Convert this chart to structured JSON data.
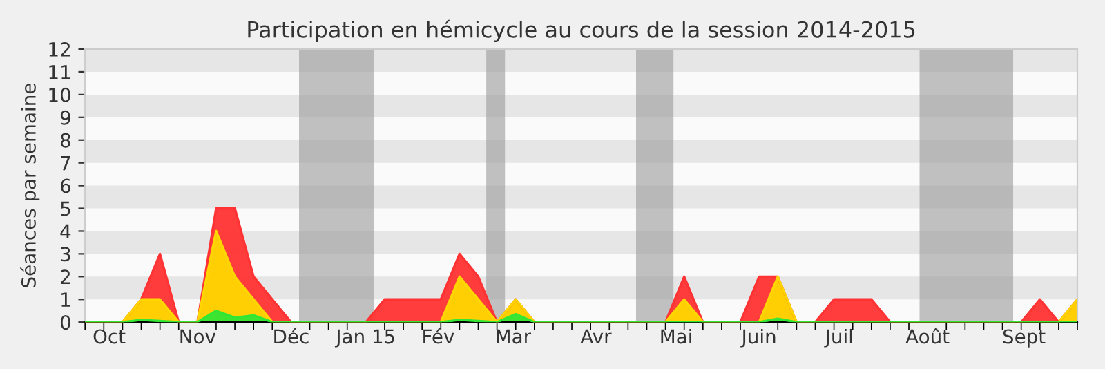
{
  "chart_data": {
    "type": "area",
    "title": "Participation en hémicycle au cours de la session 2014-2015",
    "ylabel": "Séances par semaine",
    "x": [
      "2014-09-22",
      "2014-09-29",
      "2014-10-06",
      "2014-10-13",
      "2014-10-20",
      "2014-10-27",
      "2014-11-03",
      "2014-11-10",
      "2014-11-17",
      "2014-11-24",
      "2014-12-01",
      "2014-12-08",
      "2014-12-15",
      "2014-12-22",
      "2014-12-29",
      "2015-01-05",
      "2015-01-12",
      "2015-01-19",
      "2015-01-26",
      "2015-02-02",
      "2015-02-09",
      "2015-02-16",
      "2015-02-23",
      "2015-03-02",
      "2015-03-09",
      "2015-03-16",
      "2015-03-23",
      "2015-03-30",
      "2015-04-06",
      "2015-04-13",
      "2015-04-20",
      "2015-04-27",
      "2015-05-04",
      "2015-05-11",
      "2015-05-18",
      "2015-05-25",
      "2015-06-01",
      "2015-06-08",
      "2015-06-15",
      "2015-06-22",
      "2015-06-29",
      "2015-07-06",
      "2015-07-13",
      "2015-07-20",
      "2015-07-27",
      "2015-08-03",
      "2015-08-10",
      "2015-08-17",
      "2015-08-24",
      "2015-08-31",
      "2015-09-07",
      "2015-09-14",
      "2015-09-21",
      "2015-09-28"
    ],
    "series": [
      {
        "color": "#ff3333",
        "values": [
          0,
          0,
          0,
          1,
          3,
          0,
          0,
          5,
          5,
          2,
          1,
          0,
          0,
          0,
          0,
          0,
          1,
          1,
          1,
          1,
          3,
          2,
          0,
          1,
          0,
          0,
          0,
          0,
          0,
          0,
          0,
          0,
          2,
          0,
          0,
          0,
          2,
          2,
          0,
          0,
          1,
          1,
          1,
          0,
          0,
          0,
          0,
          0,
          0,
          0,
          0,
          1,
          0,
          1
        ]
      },
      {
        "color": "#ffd700",
        "values": [
          0,
          0,
          0,
          1,
          1,
          0,
          0,
          4,
          2,
          1,
          0,
          0,
          0,
          0,
          0,
          0,
          0,
          0,
          0,
          0,
          2,
          1,
          0,
          1,
          0,
          0,
          0,
          0,
          0,
          0,
          0,
          0,
          1,
          0,
          0,
          0,
          0,
          2,
          0,
          0,
          0,
          0,
          0,
          0,
          0,
          0,
          0,
          0,
          0,
          0,
          0,
          0,
          0,
          1
        ]
      },
      {
        "color": "#33e633",
        "values": [
          0,
          0,
          0,
          0.1,
          0.05,
          0,
          0,
          0.5,
          0.2,
          0.3,
          0,
          0,
          0,
          0,
          0,
          0,
          0,
          0,
          0,
          0,
          0.1,
          0.05,
          0,
          0.35,
          0,
          0,
          0,
          0,
          0,
          0,
          0,
          0,
          0,
          0,
          0,
          0,
          0,
          0.15,
          0,
          0,
          0,
          0,
          0,
          0,
          0,
          0,
          0,
          0,
          0,
          0,
          0,
          0,
          0,
          0
        ]
      }
    ],
    "xlim": [
      "2014-09-22",
      "2015-09-28"
    ],
    "xticks": [
      {
        "value": "2014-10-01",
        "label": "Oct"
      },
      {
        "value": "2014-11-03",
        "label": "Nov"
      },
      {
        "value": "2014-12-08",
        "label": "Déc"
      },
      {
        "value": "2015-01-05",
        "label": "Jan 15"
      },
      {
        "value": "2015-02-01",
        "label": "Fév"
      },
      {
        "value": "2015-03-01",
        "label": "Mar"
      },
      {
        "value": "2015-04-01",
        "label": "Avr"
      },
      {
        "value": "2015-05-01",
        "label": "Mai"
      },
      {
        "value": "2015-06-01",
        "label": "Juin"
      },
      {
        "value": "2015-07-01",
        "label": "Juil"
      },
      {
        "value": "2015-08-03",
        "label": "Août"
      },
      {
        "value": "2015-09-08",
        "label": "Sept"
      }
    ],
    "ylim": [
      0,
      12
    ],
    "yticks": [
      0,
      1,
      2,
      3,
      4,
      5,
      6,
      7,
      8,
      9,
      10,
      11,
      12
    ],
    "bands": [
      {
        "axis": "x",
        "from": "2014-12-11",
        "to": "2015-01-08",
        "color": "#999999"
      },
      {
        "axis": "x",
        "from": "2015-02-19",
        "to": "2015-02-26",
        "color": "#999999"
      },
      {
        "axis": "x",
        "from": "2015-04-16",
        "to": "2015-04-30",
        "color": "#999999"
      },
      {
        "axis": "x",
        "from": "2015-07-31",
        "to": "2015-09-04",
        "color": "#999999"
      }
    ]
  }
}
